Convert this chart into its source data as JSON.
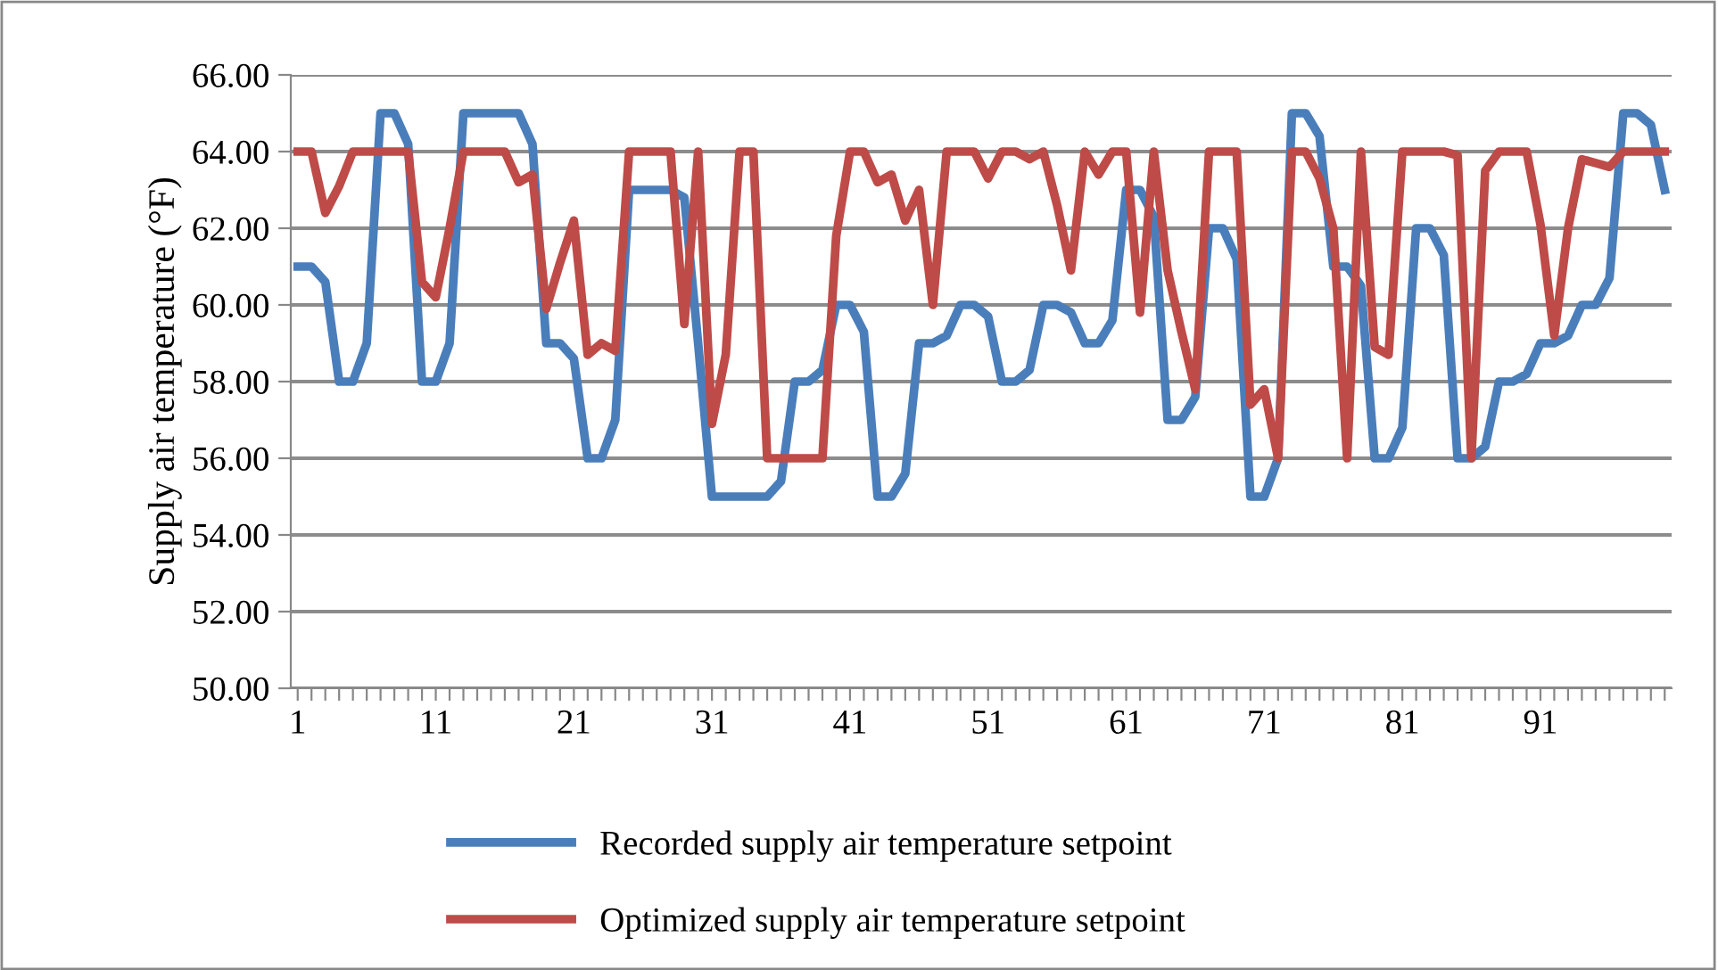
{
  "chart_data": {
    "type": "line",
    "ylabel": "Supply air temperature (°F)",
    "categories": [
      "1",
      null,
      null,
      null,
      null,
      null,
      null,
      null,
      null,
      null,
      "11",
      null,
      null,
      null,
      null,
      null,
      null,
      null,
      null,
      null,
      "21",
      null,
      null,
      null,
      null,
      null,
      null,
      null,
      null,
      null,
      "31",
      null,
      null,
      null,
      null,
      null,
      null,
      null,
      null,
      null,
      "41",
      null,
      null,
      null,
      null,
      null,
      null,
      null,
      null,
      null,
      "51",
      null,
      null,
      null,
      null,
      null,
      null,
      null,
      null,
      null,
      "61",
      null,
      null,
      null,
      null,
      null,
      null,
      null,
      null,
      null,
      "71",
      null,
      null,
      null,
      null,
      null,
      null,
      null,
      null,
      null,
      "81",
      null,
      null,
      null,
      null,
      null,
      null,
      null,
      null,
      null,
      "91",
      null,
      null,
      null,
      null,
      null,
      null,
      null,
      null,
      null
    ],
    "series": [
      {
        "name": "Recorded supply air temperature setpoint",
        "color": "#4a7ebb",
        "values": [
          61,
          61,
          60.6,
          58,
          58,
          59,
          65,
          65,
          64.2,
          58,
          58,
          59,
          65,
          65,
          65,
          65,
          65,
          64.2,
          59,
          59,
          58.6,
          56,
          56,
          57,
          63,
          63,
          63,
          63,
          62.8,
          59,
          55,
          55,
          55,
          55,
          55,
          55.4,
          58,
          58,
          58.3,
          60,
          60,
          59.3,
          55,
          55,
          55.6,
          59,
          59,
          59.2,
          60,
          60,
          59.7,
          58,
          58,
          58.3,
          60,
          60,
          59.8,
          59,
          59,
          59.6,
          63,
          63,
          62.3,
          57,
          57,
          57.6,
          62,
          62,
          61.2,
          55,
          55,
          56,
          65,
          65,
          64.4,
          61,
          61,
          60.5,
          56,
          56,
          56.8,
          62,
          62,
          61.3,
          56,
          56,
          56.3,
          58,
          58,
          58.2,
          59,
          59,
          59.2,
          60,
          60,
          60.7,
          65,
          65,
          64.7,
          63
        ]
      },
      {
        "name": "Optimized supply air temperature setpoint",
        "color": "#be4b48",
        "values": [
          64,
          64,
          62.4,
          63.1,
          64,
          64,
          64,
          64,
          64,
          60.6,
          60.2,
          62,
          64,
          64,
          64,
          64,
          63.2,
          63.4,
          59.9,
          61.1,
          62.2,
          58.7,
          59,
          58.8,
          64,
          64,
          64,
          64,
          59.5,
          64,
          56.9,
          58.7,
          64,
          64,
          56,
          56,
          56,
          56,
          56,
          61.8,
          64,
          64,
          63.2,
          63.4,
          62.2,
          63,
          60,
          64,
          64,
          64,
          63.3,
          64,
          64,
          63.8,
          64,
          62.6,
          60.9,
          64,
          63.4,
          64,
          64,
          59.8,
          64,
          60.9,
          59.3,
          57.8,
          64,
          64,
          64,
          57.4,
          57.8,
          56,
          64,
          64,
          63.3,
          62,
          56,
          64,
          58.9,
          58.7,
          64,
          64,
          64,
          64,
          63.9,
          56,
          63.5,
          64,
          64,
          64,
          62.1,
          59.2,
          62,
          63.8,
          63.7,
          63.6,
          64,
          64,
          64,
          64
        ]
      }
    ],
    "ylim": [
      50,
      66
    ],
    "yticks": [
      {
        "value": 50,
        "label": "50.00"
      },
      {
        "value": 52,
        "label": "52.00"
      },
      {
        "value": 54,
        "label": "54.00"
      },
      {
        "value": 56,
        "label": "56.00"
      },
      {
        "value": 58,
        "label": "58.00"
      },
      {
        "value": 60,
        "label": "60.00"
      },
      {
        "value": 62,
        "label": "62.00"
      },
      {
        "value": 64,
        "label": "64.00"
      },
      {
        "value": 66,
        "label": "66.00"
      }
    ],
    "grid": "y",
    "legend": "bottom",
    "marker": "none",
    "line_style": "solid"
  }
}
